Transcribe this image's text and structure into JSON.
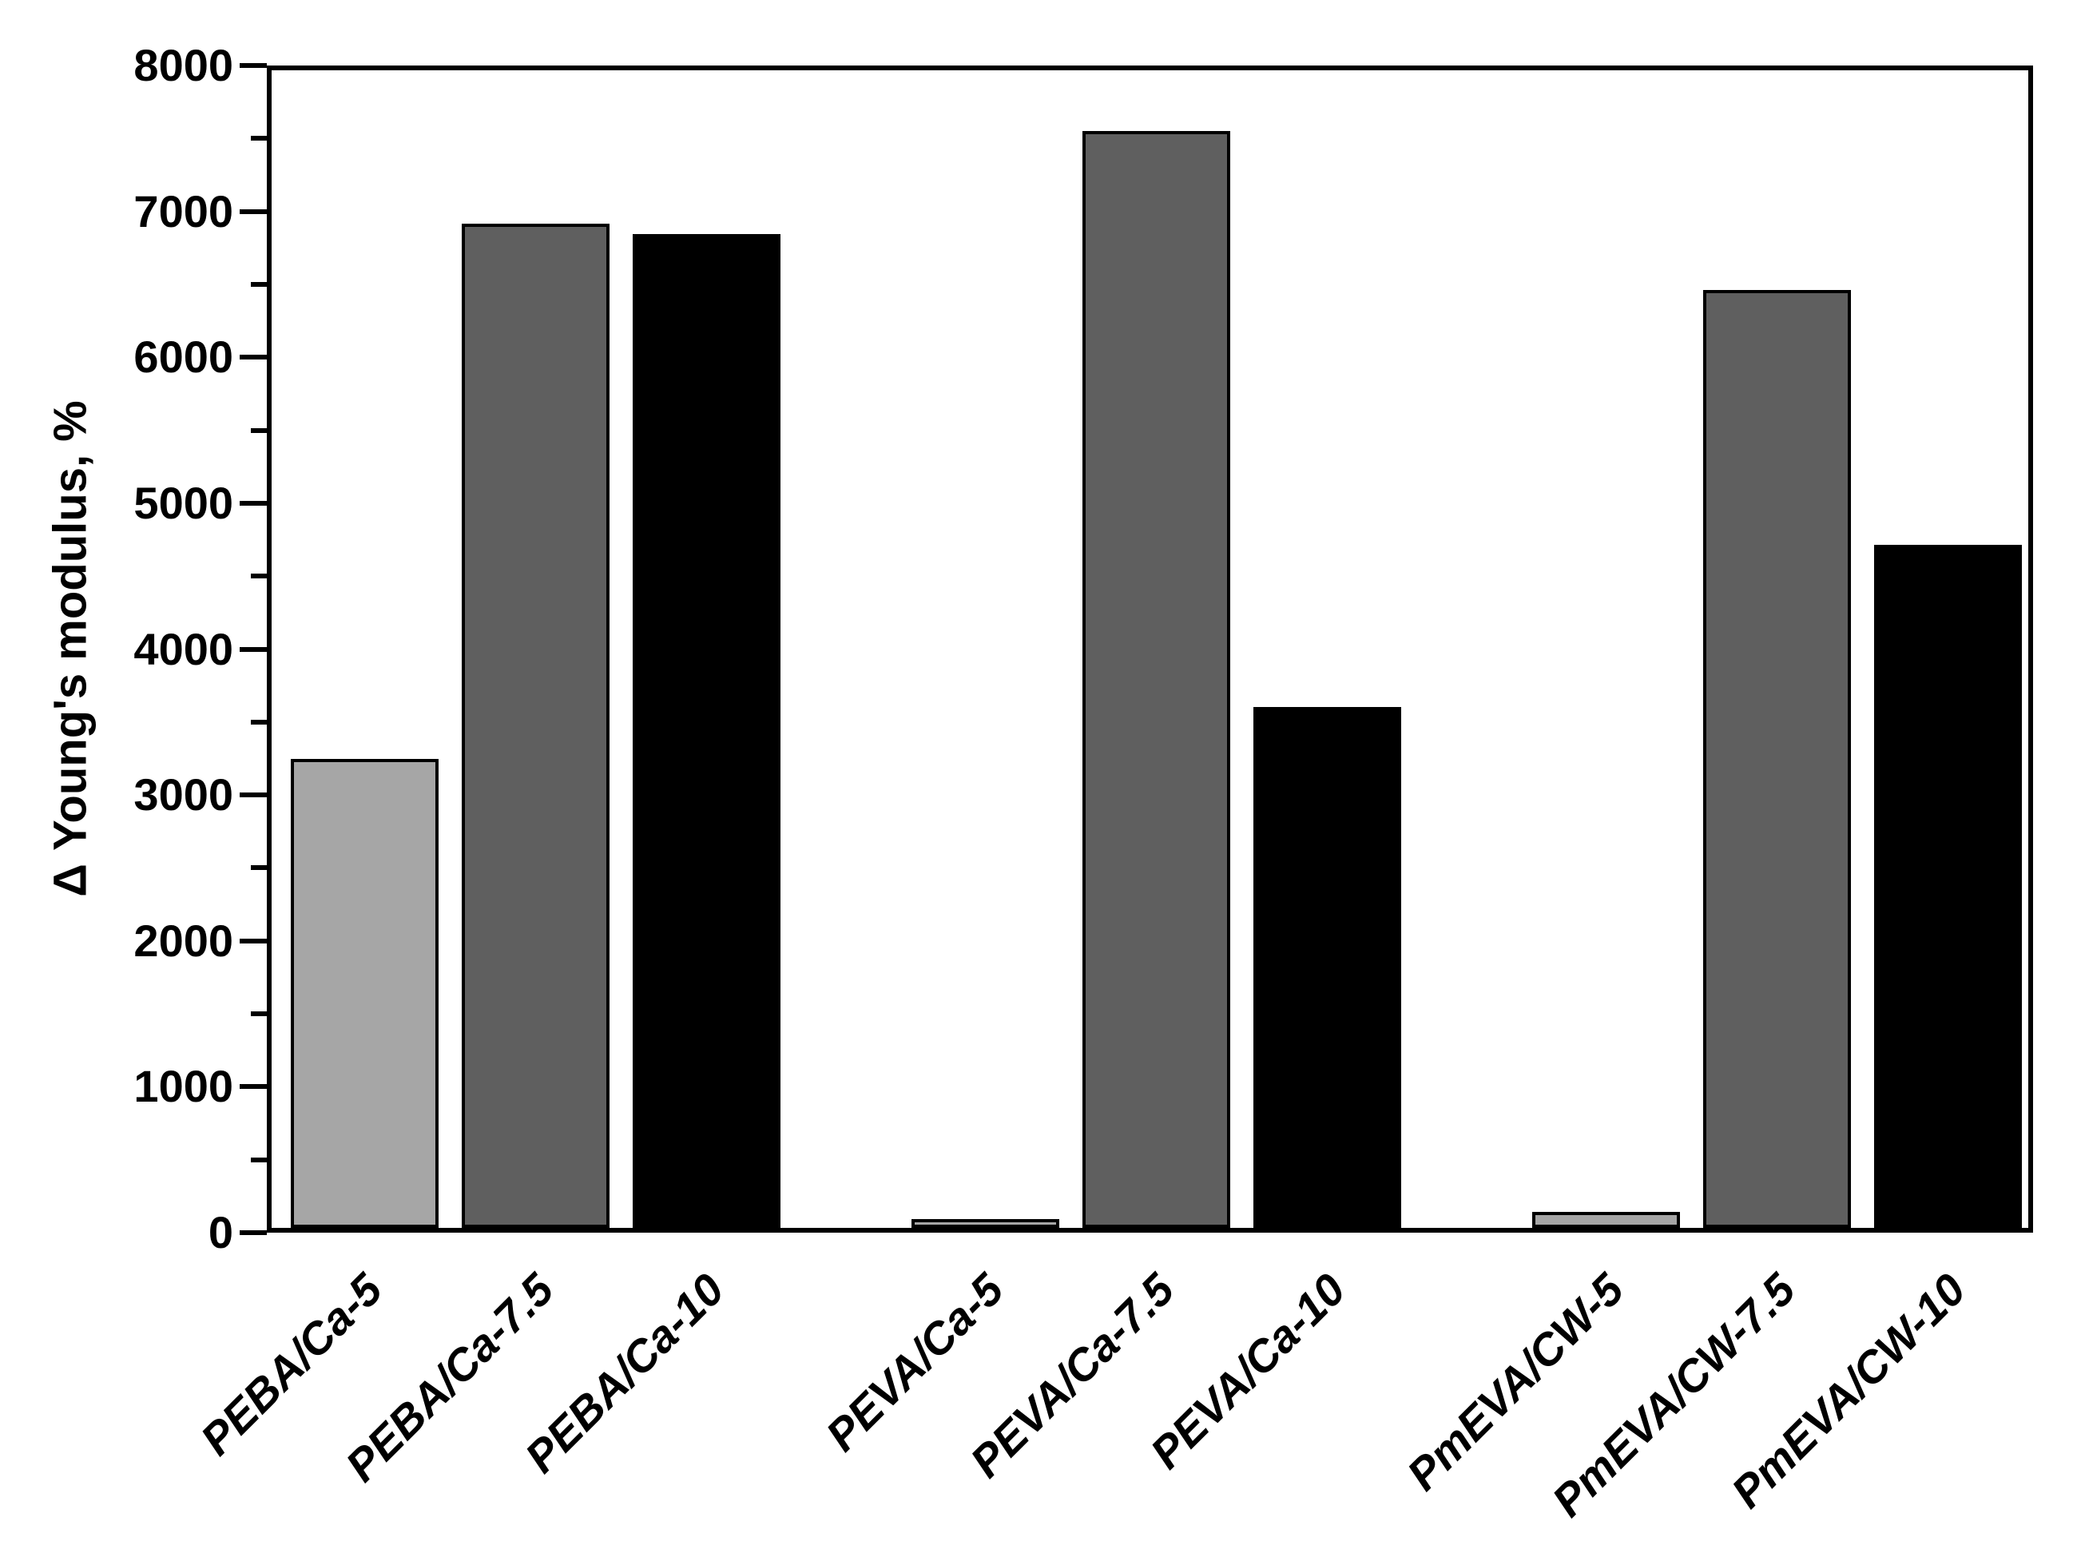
{
  "figure": {
    "background_color": "#ffffff",
    "axis_color": "#000000"
  },
  "chart_data": {
    "type": "bar",
    "title": "",
    "xlabel": "",
    "ylabel": "Δ Young's modulus, %",
    "ylim": [
      0,
      8000
    ],
    "y_major_tick_step": 1000,
    "y_minor_tick_step": 500,
    "y_tick_labels": [
      "0",
      "1000",
      "2000",
      "3000",
      "4000",
      "5000",
      "6000",
      "7000",
      "8000"
    ],
    "grid": false,
    "legend": false,
    "categories": [
      "PEBA/Ca-5",
      "PEBA/Ca-7.5",
      "PEBA/Ca-10",
      "PEVA/Ca-5",
      "PEVA/Ca-7.5",
      "PEVA/Ca-10",
      "PmEVA/CW-5",
      "PmEVA/CW-7.5",
      "PmEVA/CW-10"
    ],
    "values": [
      3240,
      6940,
      6870,
      60,
      7580,
      3600,
      110,
      6480,
      4720
    ],
    "bar_colors": [
      "#a6a6a6",
      "#5f5f5f",
      "#000000",
      "#a6a6a6",
      "#5f5f5f",
      "#000000",
      "#a6a6a6",
      "#5f5f5f",
      "#000000"
    ],
    "bar_border_color": "#000000",
    "groups": [
      [
        "PEBA/Ca-5",
        "PEBA/Ca-7.5",
        "PEBA/Ca-10"
      ],
      [
        "PEVA/Ca-5",
        "PEVA/Ca-7.5",
        "PEVA/Ca-10"
      ],
      [
        "PmEVA/CW-5",
        "PmEVA/CW-7.5",
        "PmEVA/CW-10"
      ]
    ]
  }
}
